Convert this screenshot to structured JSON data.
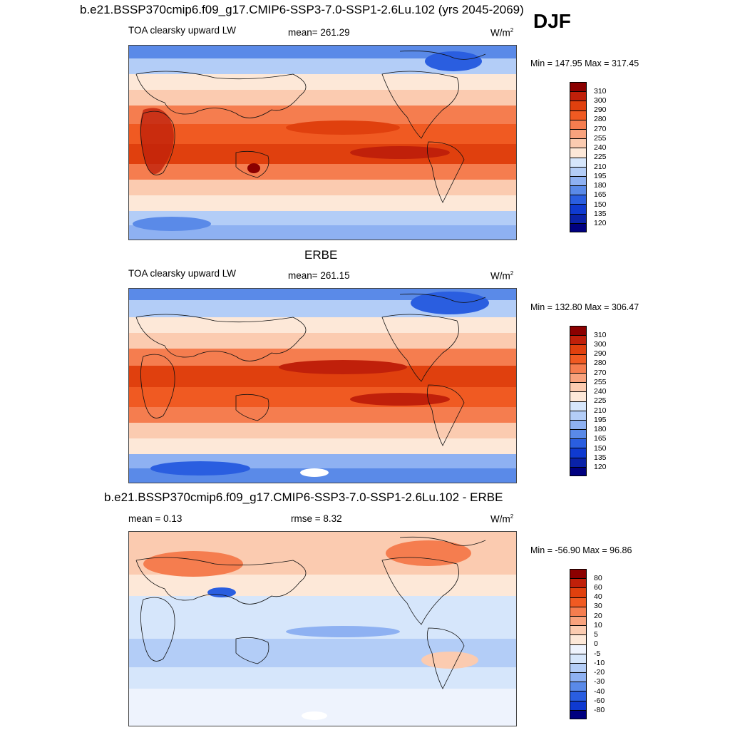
{
  "season": "DJF",
  "panels": [
    {
      "title": "b.e21.BSSP370cmip6.f09_g17.CMIP6-SSP3-7.0-SSP1-2.6Lu.102 (yrs 2045-2069)",
      "left_label": "TOA clearsky upward LW",
      "center_label": "mean= 261.29",
      "units": "W/m",
      "units_sup": "2",
      "minmax": "Min = 147.95 Max = 317.45"
    },
    {
      "title": "ERBE",
      "left_label": "TOA clearsky upward LW",
      "center_label": "mean= 261.15",
      "units": "W/m",
      "units_sup": "2",
      "minmax": "Min = 132.80 Max = 306.47"
    },
    {
      "title": "b.e21.BSSP370cmip6.f09_g17.CMIP6-SSP3-7.0-SSP1-2.6Lu.102 - ERBE",
      "left_label": "mean =   0.13",
      "center_label": "rmse =   8.32",
      "units": "W/m",
      "units_sup": "2",
      "minmax": "Min = -56.90 Max =  96.86"
    }
  ],
  "colorbar_abs": {
    "labels": [
      "310",
      "300",
      "290",
      "280",
      "270",
      "255",
      "240",
      "225",
      "210",
      "195",
      "180",
      "165",
      "150",
      "135",
      "120"
    ],
    "colors": [
      "#8b0000",
      "#c0200a",
      "#e0400e",
      "#f05a22",
      "#f57d4f",
      "#f8a27d",
      "#fbcbb0",
      "#fde8d8",
      "#d6e6fb",
      "#b3cdf7",
      "#8eb1f2",
      "#5a8ae8",
      "#2a5ee0",
      "#0f3ad0",
      "#0a22a8",
      "#000080"
    ]
  },
  "colorbar_diff": {
    "labels": [
      "80",
      "60",
      "40",
      "30",
      "20",
      "10",
      "5",
      "0",
      "-5",
      "-10",
      "-20",
      "-30",
      "-40",
      "-60",
      "-80"
    ],
    "colors": [
      "#8b0000",
      "#c0200a",
      "#e0400e",
      "#f05a22",
      "#f57d4f",
      "#f8a27d",
      "#fbcbb0",
      "#fde8d8",
      "#eef3fd",
      "#d6e6fb",
      "#b3cdf7",
      "#8eb1f2",
      "#5a8ae8",
      "#2a5ee0",
      "#0f3ad0",
      "#000080"
    ]
  }
}
